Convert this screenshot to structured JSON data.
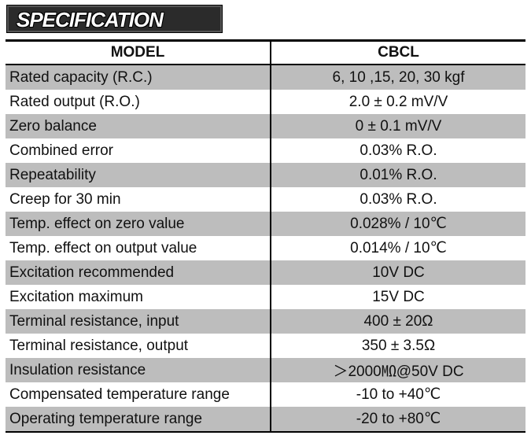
{
  "banner": {
    "title": "SPECIFICATION"
  },
  "table": {
    "headers": [
      "MODEL",
      "CBCL"
    ],
    "rows": [
      {
        "label": "Rated capacity (R.C.)",
        "value": "6, 10 ,15, 20, 30 kgf"
      },
      {
        "label": "Rated output (R.O.)",
        "value": "2.0 ± 0.2 mV/V"
      },
      {
        "label": "Zero balance",
        "value": "0 ± 0.1 mV/V"
      },
      {
        "label": "Combined error",
        "value": "0.03% R.O."
      },
      {
        "label": "Repeatability",
        "value": "0.01% R.O."
      },
      {
        "label": "Creep for 30 min",
        "value": "0.03% R.O."
      },
      {
        "label": "Temp. effect on zero value",
        "value": "0.028% / 10℃"
      },
      {
        "label": "Temp. effect on output value",
        "value": "0.014% / 10℃"
      },
      {
        "label": "Excitation recommended",
        "value": "10V DC"
      },
      {
        "label": "Excitation maximum",
        "value": "15V DC"
      },
      {
        "label": "Terminal resistance, input",
        "value": "400 ± 20Ω"
      },
      {
        "label": "Terminal resistance, output",
        "value": "350 ± 3.5Ω"
      },
      {
        "label": "Insulation resistance",
        "value": "＞2000㏁@50V DC"
      },
      {
        "label": "Compensated temperature range",
        "value": "-10 to +40℃"
      },
      {
        "label": "Operating temperature range",
        "value": "-20 to +80℃"
      }
    ]
  }
}
